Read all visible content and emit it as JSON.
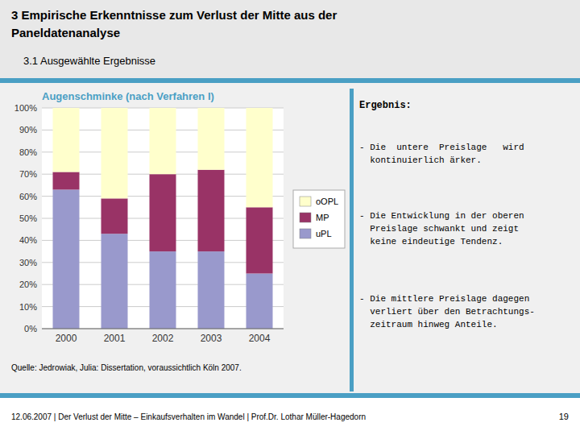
{
  "heading": [
    "3 Empirische Erkenntnisse zum Verlust der Mitte aus der",
    "Paneldatenanalyse",
    "3.1 Ausgewählte Ergebnisse"
  ],
  "side_title": "Ergebnis:",
  "side_text": [
    "- Die  untere  Preislage   wird\n  kontinuierlich ärker.",
    "- Die Entwicklung in der oberen\n  Preislage schwankt und zeigt\n  keine eindeutige Tendenz.",
    "- Die mittlere Preislage dagegen\n  verliert über den Betrachtungs-\n  zeitraum hinweg Anteile."
  ],
  "source": "Quelle: Jedrowiak, Julia: Dissertation, voraussichtlich Köln 2007.",
  "footer": "12.06.2007 | Der Verlust der Mitte – Einkaufsverhalten im Wandel | Prof.Dr. Lothar Müller-Hagedorn",
  "page_number": "19",
  "chart_data": {
    "type": "bar",
    "title": "Augenschminke (nach Verfahren I)",
    "stacked": true,
    "categories": [
      "2000",
      "2001",
      "2002",
      "2003",
      "2004"
    ],
    "series": [
      {
        "name": "uPL",
        "color": "#9999CC",
        "values": [
          0.63,
          0.43,
          0.35,
          0.35,
          0.25
        ]
      },
      {
        "name": "MP",
        "color": "#993366",
        "values": [
          0.08,
          0.16,
          0.35,
          0.37,
          0.3
        ]
      },
      {
        "name": "oOPL",
        "color": "#FFFFCC",
        "values": [
          0.29,
          0.41,
          0.3,
          0.28,
          0.45
        ]
      }
    ],
    "ylim": [
      0,
      1.0
    ],
    "yticks": [
      {
        "value": 0,
        "label": "0%"
      },
      {
        "value": 0.1,
        "label": "10%"
      },
      {
        "value": 0.2,
        "label": "20%"
      },
      {
        "value": 0.3,
        "label": "30%"
      },
      {
        "value": 0.4,
        "label": "40%"
      },
      {
        "value": 0.5,
        "label": "50%"
      },
      {
        "value": 0.6,
        "label": "60%"
      },
      {
        "value": 0.7,
        "label": "70%"
      },
      {
        "value": 0.8,
        "label": "80%"
      },
      {
        "value": 0.9,
        "label": "90%"
      },
      {
        "value": 1.0,
        "label": "100%"
      }
    ],
    "grid": true,
    "legend": "right"
  }
}
